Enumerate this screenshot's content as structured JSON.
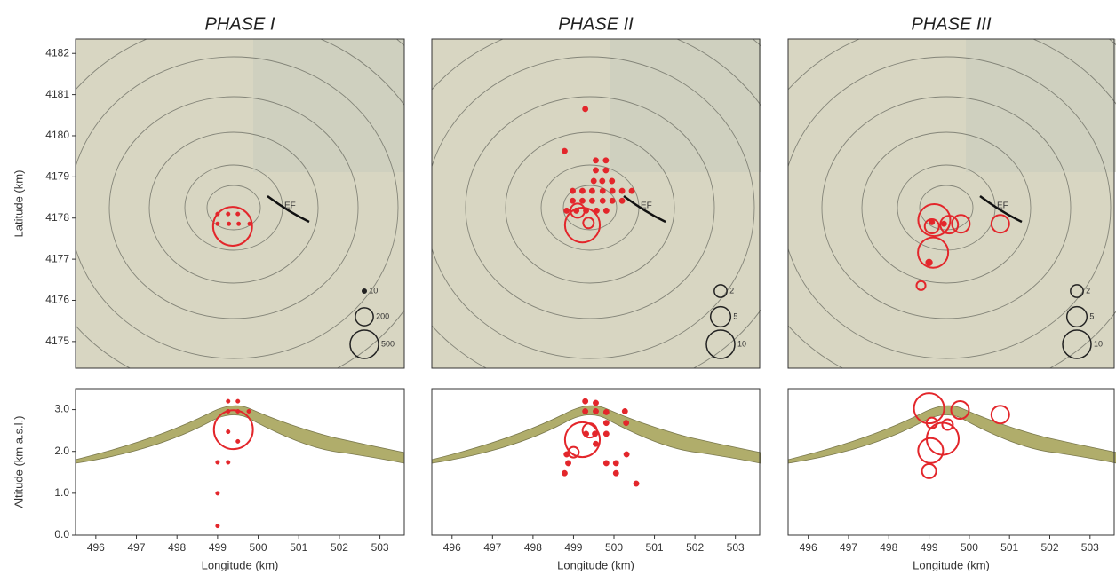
{
  "chart_data": [
    {
      "type": "scatter",
      "title": "PHASE I",
      "ylabel": "Latitude (km)",
      "color": "#e3262b",
      "x": [
        499.0,
        499.26,
        499.5,
        499.0,
        499.28,
        499.52,
        499.79,
        499.37
      ],
      "y": [
        4178.1,
        4178.1,
        4178.1,
        4177.86,
        4177.86,
        4177.86,
        4177.86,
        4177.8
      ],
      "sizes": [
        10,
        10,
        10,
        10,
        10,
        10,
        10,
        940
      ],
      "xlim": [
        495.5,
        503.6
      ],
      "ylim": [
        4174.35,
        4182.35
      ],
      "yticks": [
        4175,
        4176,
        4177,
        4178,
        4179,
        4180,
        4181,
        4182
      ],
      "size_legend": [
        10,
        200,
        500
      ],
      "annotation": "EF"
    },
    {
      "type": "scatter",
      "title": "PHASE II",
      "color": "#e3262b",
      "x": [
        499.29,
        498.78,
        499.55,
        499.8,
        499.55,
        499.8,
        499.5,
        499.71,
        499.95,
        498.98,
        499.22,
        499.46,
        499.72,
        499.96,
        500.2,
        500.44,
        498.98,
        499.22,
        499.46,
        499.72,
        499.96,
        500.2,
        498.83,
        499.07,
        499.31,
        499.57,
        499.81,
        499.22,
        499.1,
        499.37
      ],
      "y": [
        4180.65,
        4179.63,
        4179.4,
        4179.4,
        4179.16,
        4179.16,
        4178.9,
        4178.9,
        4178.9,
        4178.66,
        4178.66,
        4178.66,
        4178.66,
        4178.66,
        4178.66,
        4178.66,
        4178.42,
        4178.42,
        4178.42,
        4178.42,
        4178.42,
        4178.42,
        4178.18,
        4178.18,
        4178.18,
        4178.18,
        4178.18,
        4177.83,
        4178.18,
        4177.88
      ],
      "sizes": [
        0.4,
        0.4,
        0.4,
        0.4,
        0.4,
        0.4,
        0.4,
        0.4,
        0.4,
        0.4,
        0.4,
        0.4,
        0.4,
        0.4,
        0.4,
        0.4,
        0.4,
        0.4,
        0.4,
        0.4,
        0.4,
        0.4,
        0.4,
        0.4,
        0.4,
        0.4,
        0.4,
        15,
        2.5,
        1.4
      ],
      "xlim": [
        495.5,
        503.6
      ],
      "ylim": [
        4174.35,
        4182.35
      ],
      "size_legend": [
        2,
        5,
        10
      ],
      "annotation": "EF"
    },
    {
      "type": "scatter",
      "title": "PHASE III",
      "color": "#e3262b",
      "x": [
        499.13,
        499.07,
        499.5,
        499.79,
        499.1,
        499.0,
        498.8,
        500.77,
        499.37,
        499.07
      ],
      "y": [
        4177.95,
        4177.8,
        4177.84,
        4177.86,
        4177.16,
        4176.92,
        4176.36,
        4177.86,
        4177.86,
        4177.9
      ],
      "sizes": [
        12.7,
        2.5,
        3.9,
        3.9,
        11.3,
        0.6,
        1.0,
        3.9,
        0.4,
        0.4
      ],
      "xlim": [
        495.5,
        503.6
      ],
      "ylim": [
        4174.35,
        4182.35
      ],
      "size_legend": [
        2,
        5,
        10
      ],
      "annotation": "EF"
    },
    {
      "type": "scatter",
      "xlabel": "Longitude (km)",
      "ylabel": "Altitude (km a.s.l.)",
      "color": "#e3262b",
      "x": [
        499.26,
        499.5,
        499.26,
        499.5,
        499.77,
        499.26,
        499.5,
        499.0,
        499.26,
        499.0,
        499.0,
        499.39
      ],
      "y": [
        3.2,
        3.2,
        2.96,
        2.96,
        2.96,
        2.47,
        2.24,
        1.74,
        1.74,
        1.0,
        0.22,
        2.52
      ],
      "sizes": [
        10,
        10,
        10,
        10,
        10,
        10,
        10,
        10,
        10,
        10,
        10,
        940
      ],
      "xlim": [
        495.5,
        503.6
      ],
      "ylim": [
        0,
        3.5
      ],
      "xticks": [
        496,
        497,
        498,
        499,
        500,
        501,
        502,
        503
      ],
      "yticks": [
        {
          "value": 0,
          "label": "0.0"
        },
        {
          "value": 1,
          "label": "1.0"
        },
        {
          "value": 2,
          "label": "2.0"
        },
        {
          "value": 3,
          "label": "3.0"
        }
      ]
    },
    {
      "type": "scatter",
      "xlabel": "Longitude (km)",
      "color": "#e3262b",
      "x": [
        499.29,
        499.55,
        499.81,
        499.29,
        499.55,
        499.81,
        500.27,
        500.3,
        499.53,
        499.81,
        499.31,
        498.87,
        498.78,
        498.83,
        499.81,
        500.05,
        500.31,
        500.05,
        500.55,
        499.55,
        499.22,
        499.4,
        499.0
      ],
      "y": [
        3.2,
        3.16,
        2.94,
        2.96,
        2.96,
        2.68,
        2.96,
        2.68,
        2.42,
        2.42,
        2.42,
        1.72,
        1.48,
        1.93,
        1.72,
        1.72,
        1.93,
        1.48,
        1.23,
        2.18,
        2.28,
        2.5,
        1.98
      ],
      "sizes": [
        0.4,
        0.4,
        0.4,
        0.4,
        0.4,
        0.4,
        0.4,
        0.4,
        0.4,
        0.4,
        0.4,
        0.4,
        0.4,
        0.4,
        0.4,
        0.4,
        0.4,
        0.4,
        0.4,
        0.4,
        15,
        2.5,
        1.4
      ],
      "xlim": [
        495.5,
        503.6
      ],
      "ylim": [
        0,
        3.5
      ],
      "xticks": [
        496,
        497,
        498,
        499,
        500,
        501,
        502,
        503
      ]
    },
    {
      "type": "scatter",
      "xlabel": "Longitude (km)",
      "color": "#e3262b",
      "x": [
        499.0,
        499.77,
        500.77,
        499.34,
        499.04,
        499.0,
        499.07,
        499.46
      ],
      "y": [
        3.03,
        2.99,
        2.88,
        2.3,
        2.02,
        1.53,
        2.68,
        2.64
      ],
      "sizes": [
        11.3,
        3.9,
        3.9,
        12.7,
        7.7,
        2.5,
        1.4,
        1.4
      ],
      "xlim": [
        495.5,
        503.6
      ],
      "ylim": [
        0,
        3.5
      ],
      "xticks": [
        496,
        497,
        498,
        499,
        500,
        501,
        502,
        503
      ]
    }
  ]
}
